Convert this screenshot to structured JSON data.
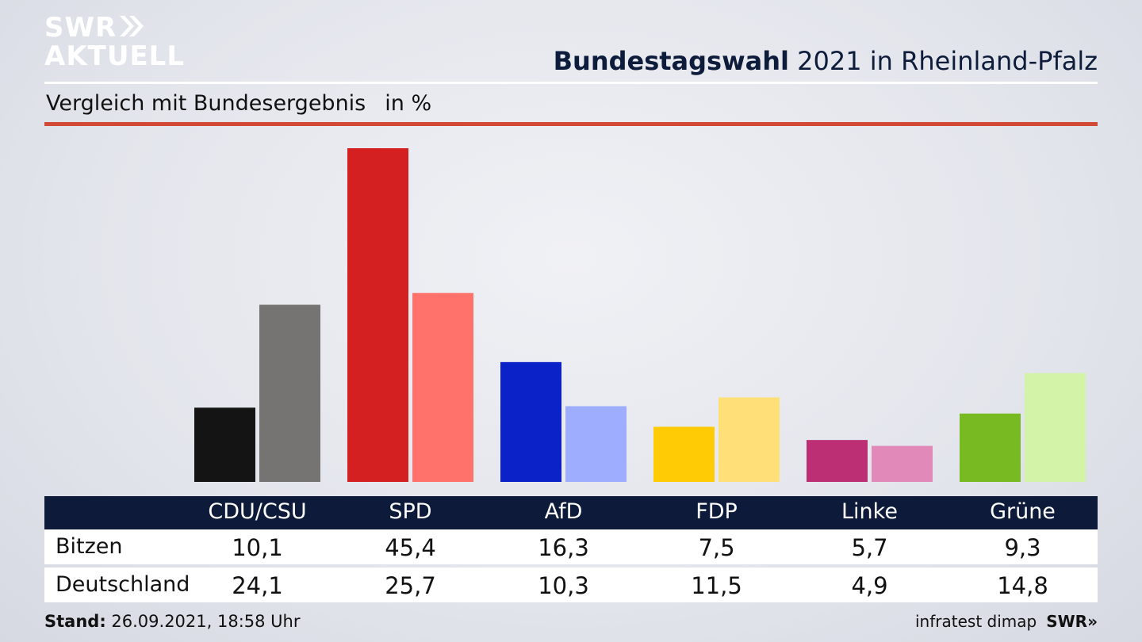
{
  "header": {
    "logo_line1": "SWR",
    "logo_line2": "AKTUELL",
    "title_bold": "Bundestagswahl",
    "title_rest": " 2021 in Rheinland-Pfalz",
    "subtitle": "Vergleich mit Bundesergebnis",
    "unit": "in %"
  },
  "chart_data": {
    "type": "bar",
    "title": "Bundestagswahl 2021 in Rheinland-Pfalz",
    "subtitle": "Vergleich mit Bundesergebnis in %",
    "categories": [
      "CDU/CSU",
      "SPD",
      "AfD",
      "FDP",
      "Linke",
      "Grüne"
    ],
    "series": [
      {
        "name": "Bitzen",
        "values": [
          10.1,
          45.4,
          16.3,
          7.5,
          5.7,
          9.3
        ],
        "display": [
          "10,1",
          "45,4",
          "16,3",
          "7,5",
          "5,7",
          "9,3"
        ],
        "colors": [
          "#141414",
          "#d42020",
          "#0a22c8",
          "#ffcb05",
          "#bd2f74",
          "#78ba22"
        ]
      },
      {
        "name": "Deutschland",
        "values": [
          24.1,
          25.7,
          10.3,
          11.5,
          4.9,
          14.8
        ],
        "display": [
          "24,1",
          "25,7",
          "10,3",
          "11,5",
          "4,9",
          "14,8"
        ],
        "colors": [
          "#767472",
          "#ff726b",
          "#9fadff",
          "#ffe078",
          "#e189b8",
          "#d3f4a8"
        ]
      }
    ],
    "ylim": [
      0,
      45.4
    ],
    "grid": false,
    "legend": "table-below"
  },
  "footer": {
    "stand_label": "Stand:",
    "stand_value": " 26.09.2021, 18:58 Uhr",
    "source": "infratest dimap",
    "brand": "SWR"
  }
}
